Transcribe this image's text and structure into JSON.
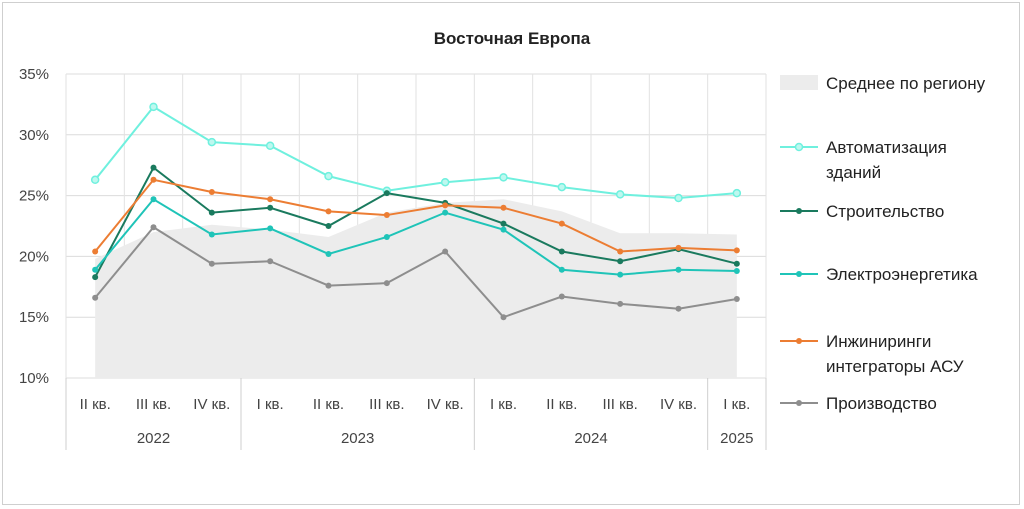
{
  "chart_data": {
    "type": "line",
    "title": "Восточная Европа",
    "quarters": [
      "II кв.",
      "III кв.",
      "IV кв.",
      "I кв.",
      "II кв.",
      "III кв.",
      "IV кв.",
      "I кв.",
      "II кв.",
      "III кв.",
      "IV кв.",
      "I кв."
    ],
    "years": [
      {
        "label": "2022",
        "span": 3
      },
      {
        "label": "2023",
        "span": 4
      },
      {
        "label": "2024",
        "span": 4
      },
      {
        "label": "2025",
        "span": 1
      }
    ],
    "y_ticks": [
      "10%",
      "15%",
      "20%",
      "25%",
      "30%",
      "35%"
    ],
    "ylim": [
      10,
      35
    ],
    "grid": true,
    "legend_position": "right",
    "area": {
      "name": "Среднее по региону",
      "color": "#ececec",
      "values": [
        19.8,
        22.0,
        22.6,
        22.2,
        21.6,
        23.6,
        24.4,
        24.7,
        23.7,
        21.9,
        21.9,
        21.8
      ]
    },
    "series": [
      {
        "name": "Автоматизация зданий",
        "color": "#6ff0de",
        "open_marker": true,
        "values": [
          26.3,
          32.3,
          29.4,
          29.1,
          26.6,
          25.4,
          26.1,
          26.5,
          25.7,
          25.1,
          24.8,
          25.2
        ]
      },
      {
        "name": "Строительство",
        "color": "#1a7a5e",
        "open_marker": false,
        "values": [
          18.3,
          27.3,
          23.6,
          24.0,
          22.5,
          25.2,
          24.4,
          22.7,
          20.4,
          19.6,
          20.6,
          19.4
        ]
      },
      {
        "name": "Электроэнергетика",
        "color": "#1fc4b8",
        "open_marker": false,
        "values": [
          18.9,
          24.7,
          21.8,
          22.3,
          20.2,
          21.6,
          23.6,
          22.2,
          18.9,
          18.5,
          18.9,
          18.8
        ]
      },
      {
        "name": "Инжиниринг и интеграторы АСУ",
        "label_lines": [
          "Инжиниринги",
          "интеграторы АСУ"
        ],
        "color": "#ec7d33",
        "open_marker": false,
        "values": [
          20.4,
          26.3,
          25.3,
          24.7,
          23.7,
          23.4,
          24.2,
          24.0,
          22.7,
          20.4,
          20.7,
          20.5
        ]
      },
      {
        "name": "Производство",
        "color": "#8e8e8e",
        "open_marker": false,
        "values": [
          16.6,
          22.4,
          19.4,
          19.6,
          17.6,
          17.8,
          20.4,
          15.0,
          16.7,
          16.1,
          15.7,
          16.5
        ]
      }
    ]
  }
}
